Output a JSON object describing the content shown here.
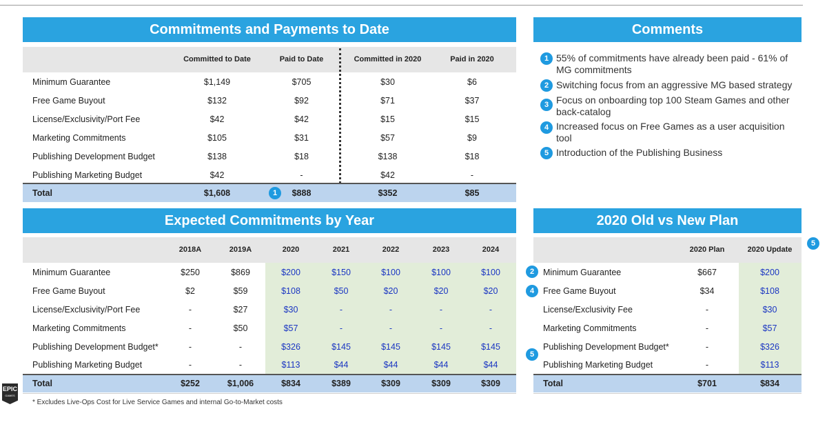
{
  "panels": {
    "commitments_title": "Commitments and Payments to Date",
    "comments_title": "Comments",
    "expected_title": "Expected Commitments by Year",
    "plan_title": "2020 Old vs New Plan"
  },
  "table1": {
    "headers": [
      "Committed to Date",
      "Paid to Date",
      "Committed in 2020",
      "Paid in 2020"
    ],
    "rows": [
      {
        "label": "Minimum Guarantee",
        "values": [
          "$1,149",
          "$705",
          "$30",
          "$6"
        ]
      },
      {
        "label": "Free Game Buyout",
        "values": [
          "$132",
          "$92",
          "$71",
          "$37"
        ]
      },
      {
        "label": "License/Exclusivity/Port Fee",
        "values": [
          "$42",
          "$42",
          "$15",
          "$15"
        ]
      },
      {
        "label": "Marketing Commitments",
        "values": [
          "$105",
          "$31",
          "$57",
          "$9"
        ]
      },
      {
        "label": "Publishing Development Budget",
        "values": [
          "$138",
          "$18",
          "$138",
          "$18"
        ]
      },
      {
        "label": "Publishing Marketing Budget",
        "values": [
          "$42",
          "-",
          "$42",
          "-"
        ]
      }
    ],
    "total": {
      "label": "Total",
      "values": [
        "$1,608",
        "$888",
        "$352",
        "$85"
      ]
    }
  },
  "comments": [
    {
      "num": "1",
      "text": "55% of commitments have already been paid - 61% of MG commitments"
    },
    {
      "num": "2",
      "text": "Switching focus from an aggressive MG based strategy"
    },
    {
      "num": "3",
      "text": "Focus on onboarding top 100 Steam Games and other back-catalog"
    },
    {
      "num": "4",
      "text": "Increased focus on Free Games as a user acquisition tool"
    },
    {
      "num": "5",
      "text": "Introduction of the Publishing Business"
    }
  ],
  "table2": {
    "headers": [
      "2018A",
      "2019A",
      "2020",
      "2021",
      "2022",
      "2023",
      "2024"
    ],
    "rows": [
      {
        "label": "Minimum Guarantee",
        "values": [
          "$250",
          "$869",
          "$200",
          "$150",
          "$100",
          "$100",
          "$100"
        ]
      },
      {
        "label": "Free Game Buyout",
        "values": [
          "$2",
          "$59",
          "$108",
          "$50",
          "$20",
          "$20",
          "$20"
        ]
      },
      {
        "label": "License/Exclusivity/Port Fee",
        "values": [
          "-",
          "$27",
          "$30",
          "-",
          "-",
          "-",
          "-"
        ]
      },
      {
        "label": "Marketing Commitments",
        "values": [
          "-",
          "$50",
          "$57",
          "-",
          "-",
          "-",
          "-"
        ]
      },
      {
        "label": "Publishing Development Budget*",
        "values": [
          "-",
          "-",
          "$326",
          "$145",
          "$145",
          "$145",
          "$145"
        ]
      },
      {
        "label": "Publishing Marketing Budget",
        "values": [
          "-",
          "-",
          "$113",
          "$44",
          "$44",
          "$44",
          "$44"
        ]
      }
    ],
    "total": {
      "label": "Total",
      "values": [
        "$252",
        "$1,006",
        "$834",
        "$389",
        "$309",
        "$309",
        "$309"
      ]
    }
  },
  "table3": {
    "headers": [
      "2020 Plan",
      "2020 Update"
    ],
    "rows": [
      {
        "label": "Minimum Guarantee",
        "values": [
          "$667",
          "$200"
        ]
      },
      {
        "label": "Free Game Buyout",
        "values": [
          "$34",
          "$108"
        ]
      },
      {
        "label": "License/Exclusivity Fee",
        "values": [
          "-",
          "$30"
        ]
      },
      {
        "label": "Marketing Commitments",
        "values": [
          "-",
          "$57"
        ]
      },
      {
        "label": "Publishing Development Budget*",
        "values": [
          "-",
          "$326"
        ]
      },
      {
        "label": "Publishing Marketing Budget",
        "values": [
          "-",
          "$113"
        ]
      }
    ],
    "total": {
      "label": "Total",
      "values": [
        "$701",
        "$834"
      ]
    }
  },
  "badges": {
    "one": "1",
    "two": "2",
    "four": "4",
    "five": "5"
  },
  "footnote": "* Excludes Live-Ops Cost for Live Service Games and internal Go-to-Market costs",
  "logo": {
    "line1": "EPIC",
    "line2": "GAMES"
  },
  "colors": {
    "accent": "#2aa3e0",
    "total_band": "#bcd4ee",
    "highlight": "#e2edd9",
    "value_blue": "#1a35c2"
  }
}
